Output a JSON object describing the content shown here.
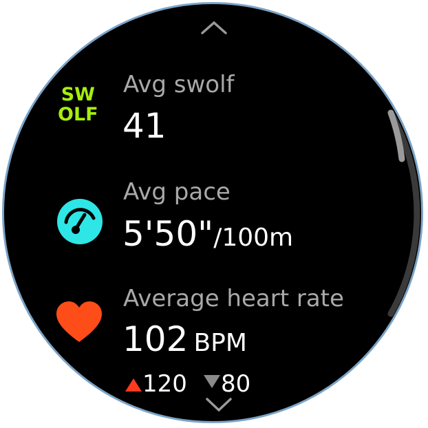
{
  "navigation": {
    "up_icon": "chevron-up-icon",
    "down_icon": "chevron-down-icon"
  },
  "metrics": [
    {
      "icon_text": [
        "SW",
        "OLF"
      ],
      "icon_color": "#a6ef0c",
      "label": "Avg swolf",
      "value": "41"
    },
    {
      "icon": "speedometer-icon",
      "icon_color": "#2ee6e6",
      "label": "Avg pace",
      "value": "5'50\"",
      "unit": "/100m"
    },
    {
      "icon": "heart-icon",
      "icon_color": "#ff4d1a",
      "label": "Average heart rate",
      "value": "102",
      "unit": "BPM",
      "max": {
        "icon": "triangle-up-icon",
        "color": "#ff3b1f",
        "value": "120"
      },
      "min": {
        "icon": "triangle-down-icon",
        "color": "#8a8a8a",
        "value": "80"
      }
    }
  ],
  "scroll": {
    "position_percent": 0
  }
}
